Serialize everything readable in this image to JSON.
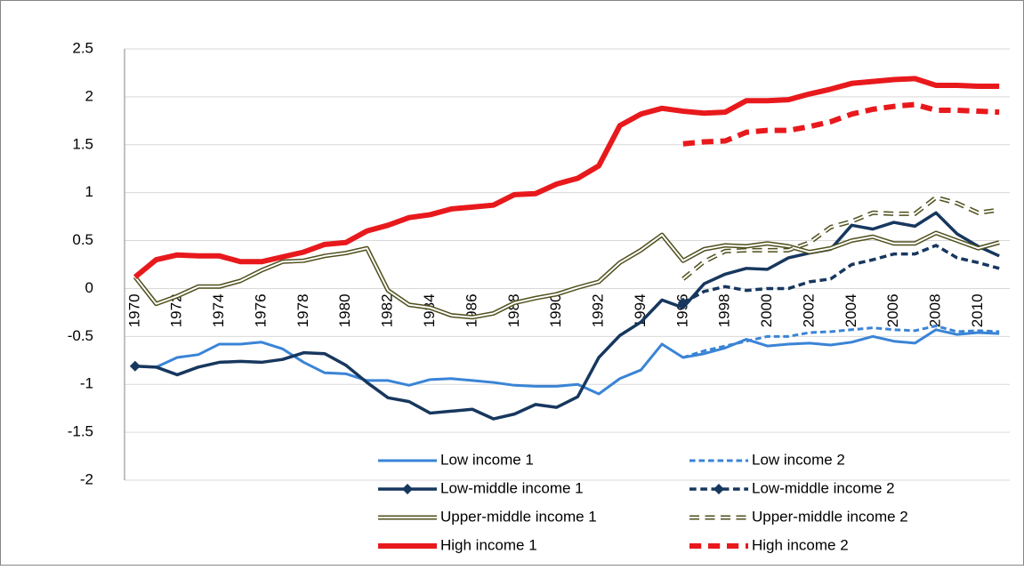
{
  "chart_data": {
    "type": "line",
    "categories": [
      "1970",
      null,
      "1972",
      null,
      "1974",
      null,
      "1976",
      null,
      "1978",
      null,
      "1980",
      null,
      "1982",
      null,
      "1984",
      null,
      "1986",
      null,
      "1988",
      null,
      "1990",
      null,
      "1992",
      null,
      "1994",
      null,
      "1996",
      null,
      "1998",
      null,
      "2000",
      null,
      "2002",
      null,
      "2004",
      null,
      "2006",
      null,
      "2008",
      null,
      "2010",
      null
    ],
    "ylim": [
      -2,
      2.5
    ],
    "yticks": [
      -2,
      -1.5,
      -1,
      -0.5,
      0,
      0.5,
      1,
      1.5,
      2,
      2.5
    ],
    "grid": true,
    "legend": "bottom",
    "series": [
      {
        "name": "Low income 1",
        "color": "#3a84d6",
        "width": 3,
        "values": [
          -0.81,
          -0.82,
          -0.72,
          -0.69,
          -0.58,
          -0.58,
          -0.56,
          -0.63,
          -0.77,
          -0.88,
          -0.89,
          -0.96,
          -0.96,
          -1.01,
          -0.95,
          -0.94,
          -0.96,
          -0.98,
          -1.01,
          -1.02,
          -1.02,
          -1.0,
          -1.1,
          -0.94,
          -0.85,
          -0.58,
          -0.72,
          -0.68,
          -0.62,
          -0.53,
          -0.6,
          -0.58,
          -0.57,
          -0.59,
          -0.56,
          -0.5,
          -0.55,
          -0.57,
          -0.43,
          -0.48,
          -0.46,
          -0.47
        ]
      },
      {
        "name": "Low income 2",
        "color": "#3a84d6",
        "width": 3,
        "dash": true,
        "values": [
          null,
          null,
          null,
          null,
          null,
          null,
          null,
          null,
          null,
          null,
          null,
          null,
          null,
          null,
          null,
          null,
          null,
          null,
          null,
          null,
          null,
          null,
          null,
          null,
          null,
          null,
          -0.72,
          -0.65,
          -0.6,
          -0.55,
          -0.5,
          -0.5,
          -0.46,
          -0.45,
          -0.43,
          -0.41,
          -0.43,
          -0.44,
          -0.39,
          -0.45,
          -0.44,
          -0.45
        ]
      },
      {
        "name": "Low-middle income 1",
        "color": "#17375e",
        "width": 3.5,
        "marker": "diamond",
        "values": [
          -0.81,
          -0.82,
          -0.9,
          -0.82,
          -0.77,
          -0.76,
          -0.77,
          -0.74,
          -0.67,
          -0.68,
          -0.8,
          -0.98,
          -1.14,
          -1.18,
          -1.3,
          -1.28,
          -1.26,
          -1.36,
          -1.31,
          -1.21,
          -1.24,
          -1.13,
          -0.72,
          -0.49,
          -0.35,
          -0.12,
          -0.2,
          0.05,
          0.15,
          0.21,
          0.2,
          0.32,
          0.37,
          0.41,
          0.66,
          0.62,
          0.69,
          0.65,
          0.79,
          0.57,
          0.44,
          0.34
        ]
      },
      {
        "name": "Low-middle income 2",
        "color": "#17375e",
        "width": 3.5,
        "dash": true,
        "marker": "diamond",
        "values": [
          null,
          null,
          null,
          null,
          null,
          null,
          null,
          null,
          null,
          null,
          null,
          null,
          null,
          null,
          null,
          null,
          null,
          null,
          null,
          null,
          null,
          null,
          null,
          null,
          null,
          null,
          -0.15,
          -0.03,
          0.02,
          -0.02,
          0,
          0,
          0.07,
          0.1,
          0.25,
          0.3,
          0.36,
          0.36,
          0.45,
          0.32,
          0.27,
          0.21
        ]
      },
      {
        "name": "Upper-middle income 1",
        "color": "#4f4f1c",
        "width": 5,
        "double": true,
        "values": [
          0.12,
          -0.16,
          -0.08,
          0.02,
          0.02,
          0.08,
          0.19,
          0.28,
          0.29,
          0.34,
          0.37,
          0.42,
          -0.02,
          -0.17,
          -0.2,
          -0.28,
          -0.3,
          -0.26,
          -0.15,
          -0.1,
          -0.06,
          0.01,
          0.07,
          0.27,
          0.4,
          0.56,
          0.29,
          0.41,
          0.45,
          0.44,
          0.47,
          0.44,
          0.38,
          0.42,
          0.5,
          0.54,
          0.47,
          0.47,
          0.58,
          0.5,
          0.42,
          0.48
        ]
      },
      {
        "name": "Upper-middle income 2",
        "color": "#4f4f1c",
        "width": 5,
        "double": true,
        "dash": true,
        "values": [
          null,
          null,
          null,
          null,
          null,
          null,
          null,
          null,
          null,
          null,
          null,
          null,
          null,
          null,
          null,
          null,
          null,
          null,
          null,
          null,
          null,
          null,
          null,
          null,
          null,
          null,
          0.1,
          0.28,
          0.39,
          0.4,
          0.4,
          0.4,
          0.48,
          0.64,
          0.7,
          0.79,
          0.78,
          0.78,
          0.95,
          0.89,
          0.79,
          0.82
        ]
      },
      {
        "name": "High income 1",
        "color": "#e8191c",
        "width": 6,
        "values": [
          0.12,
          0.3,
          0.35,
          0.34,
          0.34,
          0.28,
          0.28,
          0.33,
          0.38,
          0.46,
          0.48,
          0.6,
          0.66,
          0.74,
          0.77,
          0.83,
          0.85,
          0.87,
          0.98,
          0.99,
          1.09,
          1.15,
          1.28,
          1.7,
          1.82,
          1.88,
          1.85,
          1.83,
          1.84,
          1.96,
          1.96,
          1.97,
          2.03,
          2.08,
          2.14,
          2.16,
          2.18,
          2.19,
          2.12,
          2.12,
          2.11,
          2.11
        ]
      },
      {
        "name": "High income 2",
        "color": "#e8191c",
        "width": 6,
        "dash": true,
        "values": [
          null,
          null,
          null,
          null,
          null,
          null,
          null,
          null,
          null,
          null,
          null,
          null,
          null,
          null,
          null,
          null,
          null,
          null,
          null,
          null,
          null,
          null,
          null,
          null,
          null,
          null,
          1.51,
          1.53,
          1.54,
          1.63,
          1.65,
          1.65,
          1.69,
          1.74,
          1.82,
          1.87,
          1.9,
          1.92,
          1.86,
          1.86,
          1.85,
          1.84
        ]
      }
    ]
  }
}
